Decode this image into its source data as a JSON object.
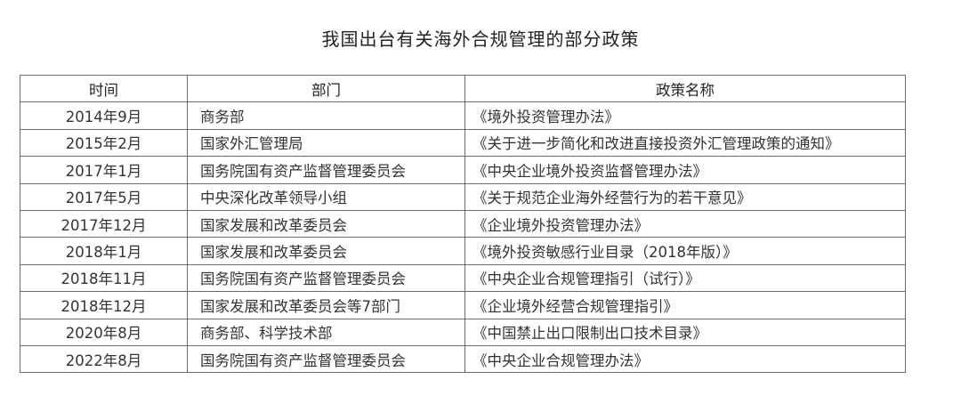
{
  "title": "我国出台有关海外合规管理的部分政策",
  "table": {
    "headers": [
      "时间",
      "部门",
      "政策名称"
    ],
    "rows": [
      [
        "2014年9月",
        "商务部",
        "《境外投资管理办法》"
      ],
      [
        "2015年2月",
        "国家外汇管理局",
        "《关于进一步简化和改进直接投资外汇管理政策的通知》"
      ],
      [
        "2017年1月",
        "国务院国有资产监督管理委员会",
        "《中央企业境外投资监督管理办法》"
      ],
      [
        "2017年5月",
        "中央深化改革领导小组",
        "《关于规范企业海外经营行为的若干意见》"
      ],
      [
        "2017年12月",
        "国家发展和改革委员会",
        "《企业境外投资管理办法》"
      ],
      [
        "2018年1月",
        "国家发展和改革委员会",
        "《境外投资敏感行业目录（2018年版）》"
      ],
      [
        "2018年11月",
        "国务院国有资产监督管理委员会",
        "《中央企业合规管理指引（试行）》"
      ],
      [
        "2018年12月",
        "国家发展和改革委员会等7部门",
        "《企业境外经营合规管理指引》"
      ],
      [
        "2020年8月",
        "商务部、科学技术部",
        "《中国禁止出口限制出口技术目录》"
      ],
      [
        "2022年8月",
        "国务院国有资产监督管理委员会",
        "《中央企业合规管理办法》"
      ]
    ]
  }
}
